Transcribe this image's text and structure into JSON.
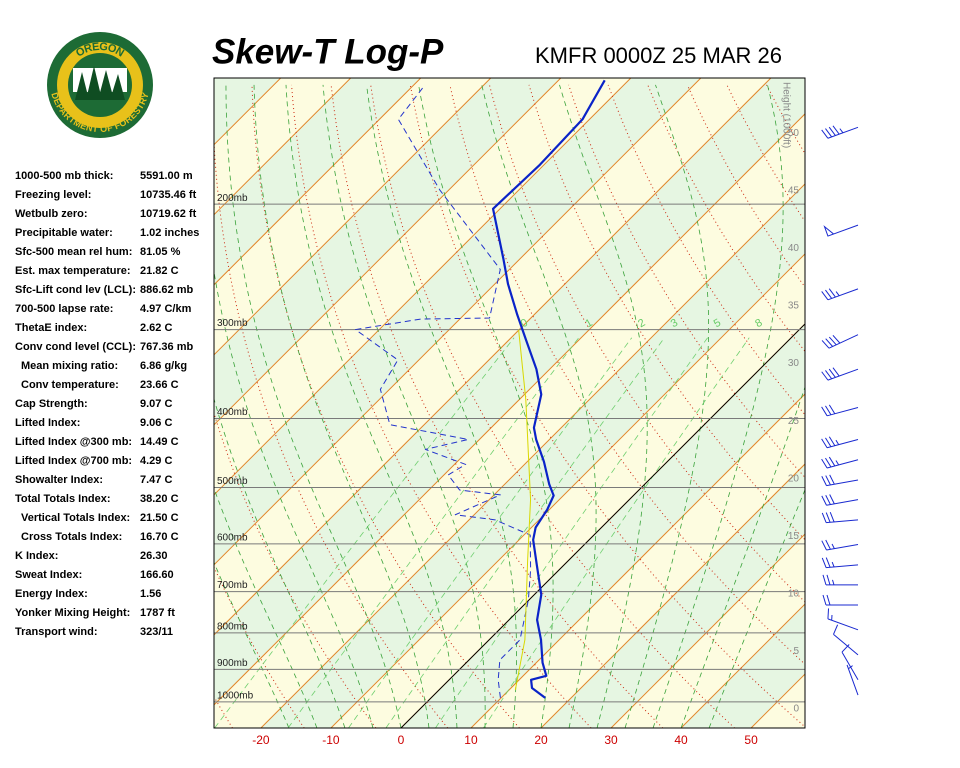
{
  "logo": {
    "top": "OREGON",
    "bottom": "DEPARTMENT OF FORESTRY"
  },
  "indices": [
    {
      "label": "1000-500 mb thick:",
      "value": "5591.00 m"
    },
    {
      "label": "Freezing level:",
      "value": "10735.46 ft"
    },
    {
      "label": "Wetbulb zero:",
      "value": "10719.62 ft"
    },
    {
      "label": "Precipitable water:",
      "value": "1.02 inches"
    },
    {
      "label": "Sfc-500 mean rel hum:",
      "value": "81.05 %"
    },
    {
      "label": "Est. max temperature:",
      "value": "21.82 C"
    },
    {
      "label": "Sfc-Lift cond lev (LCL):",
      "value": "886.62 mb"
    },
    {
      "label": "700-500 lapse rate:",
      "value": "4.97 C/km"
    },
    {
      "label": "ThetaE index:",
      "value": "2.62 C"
    },
    {
      "label": "Conv cond level (CCL):",
      "value": "767.36 mb"
    },
    {
      "label": "Mean mixing ratio:",
      "value": "6.86 g/kg",
      "indent": true
    },
    {
      "label": "Conv temperature:",
      "value": "23.66 C",
      "indent": true
    },
    {
      "label": "Cap Strength:",
      "value": "9.07 C"
    },
    {
      "label": "Lifted Index:",
      "value": "9.06 C"
    },
    {
      "label": "Lifted Index @300 mb:",
      "value": "14.49 C"
    },
    {
      "label": "Lifted Index @700 mb:",
      "value": "4.29 C"
    },
    {
      "label": "Showalter Index:",
      "value": "7.47 C"
    },
    {
      "label": "Total Totals Index:",
      "value": "38.20 C"
    },
    {
      "label": "Vertical Totals Index:",
      "value": "21.50 C",
      "indent": true
    },
    {
      "label": "Cross Totals Index:",
      "value": "16.70 C",
      "indent": true
    },
    {
      "label": "K Index:",
      "value": "26.30"
    },
    {
      "label": "Sweat Index:",
      "value": "166.60"
    },
    {
      "label": "Energy Index:",
      "value": "1.56"
    },
    {
      "label": "Yonker Mixing Height:",
      "value": "1787 ft"
    },
    {
      "label": "Transport wind:",
      "value": "323/11"
    }
  ],
  "chart_data": {
    "type": "skewt",
    "title": "Skew-T Log-P",
    "subtitle": "KMFR 0000Z 25 MAR 26",
    "xlim": [
      -26.7,
      57.7
    ],
    "xticks": [
      -20,
      -10,
      0,
      10,
      20,
      30,
      40,
      50
    ],
    "ylim": [
      1088,
      133
    ],
    "log_y": true,
    "yticks": [
      {
        "value": 1000,
        "label": "1000mb"
      },
      {
        "value": 900,
        "label": "900mb"
      },
      {
        "value": 800,
        "label": "800mb"
      },
      {
        "value": 700,
        "label": "700mb"
      },
      {
        "value": 600,
        "label": "600mb"
      },
      {
        "value": 500,
        "label": "500mb"
      },
      {
        "value": 400,
        "label": "400mb"
      },
      {
        "value": 300,
        "label": "300mb"
      },
      {
        "value": 200,
        "label": "200mb"
      }
    ],
    "height_axis": {
      "label": "Height (1000ft)",
      "lim": [
        -1.65,
        54.8
      ],
      "ticks": [
        0,
        5,
        10,
        15,
        20,
        25,
        30,
        35,
        40,
        45,
        50
      ]
    },
    "mixing_ratios": [
      {
        "value": 0.4,
        "label": "0"
      },
      1,
      2,
      3,
      5,
      8
    ],
    "series": [
      {
        "color": "#0a23c8",
        "style": "solid",
        "pressure": [
          987,
          956,
          931,
          919,
          881,
          818,
          767,
          707,
          642,
          592,
          569,
          537,
          513,
          495,
          460,
          428,
          412,
          370,
          341,
          310,
          286,
          259,
          239,
          203,
          176,
          152,
          134
        ],
        "values": [
          16.3,
          13.0,
          11.7,
          13.3,
          10.9,
          7.4,
          4.0,
          1.0,
          -3.9,
          -8.0,
          -9.4,
          -10.3,
          -11.4,
          -13.6,
          -17.6,
          -21.9,
          -23.9,
          -27.6,
          -31.9,
          -37.6,
          -42.4,
          -48.1,
          -52.3,
          -61.0,
          -60.6,
          -61.0,
          -63.4
        ]
      },
      {
        "color": "#2233cc",
        "style": "dashed",
        "pressure": [
          987,
          931,
          873,
          818,
          719,
          652,
          583,
          555,
          546,
          512,
          504,
          480,
          464,
          442,
          428,
          408,
          364,
          331,
          300,
          290,
          289,
          247,
          191,
          152,
          136
        ],
        "values": [
          9.9,
          7.0,
          4.4,
          4.4,
          -0.1,
          -4.1,
          -9.1,
          -16.3,
          -22.7,
          -19.1,
          -25.6,
          -29.4,
          -28.4,
          -36.3,
          -31.6,
          -44.9,
          -51.3,
          -53.0,
          -63.4,
          -55.6,
          -45.9,
          -51.3,
          -71.3,
          -87.3,
          -88.4
        ]
      },
      {
        "color": "#d8d800",
        "style": "solid",
        "pressure": [
          962,
          818,
          632,
          520,
          376,
          300
        ],
        "values": [
          10.9,
          5.1,
          -5.9,
          -14.1,
          -29.1,
          -40.1
        ]
      }
    ],
    "winds": {
      "pressure": [
        156,
        214,
        263,
        305,
        341,
        386,
        428,
        457,
        488,
        520,
        555,
        601,
        642,
        685,
        731,
        792,
        859,
        931,
        978
      ],
      "direction": [
        250,
        250,
        250,
        245,
        250,
        255,
        255,
        255,
        260,
        260,
        265,
        260,
        265,
        270,
        270,
        290,
        310,
        330,
        340
      ],
      "speed": [
        45,
        50,
        35,
        40,
        40,
        30,
        35,
        35,
        30,
        30,
        30,
        25,
        25,
        25,
        20,
        15,
        10,
        10,
        5
      ],
      "color": "#1a2ad0"
    }
  }
}
